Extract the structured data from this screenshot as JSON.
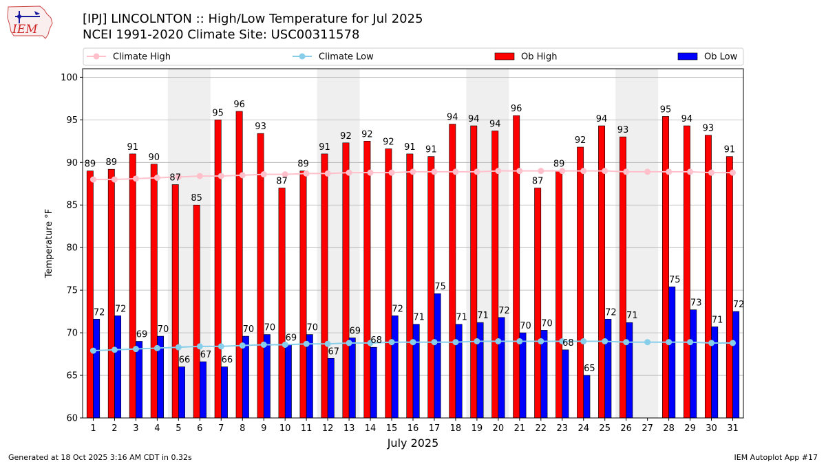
{
  "header": {
    "title_line1": "[IPJ] LINCOLNTON :: High/Low Temperature for Jul 2025",
    "title_line2": "NCEI 1991-2020 Climate Site: USC00311578",
    "logo_text": "IEM"
  },
  "footer": {
    "generated": "Generated at 18 Oct 2025 3:16 AM CDT in 0.32s",
    "app": "IEM Autoplot App #17"
  },
  "colors": {
    "ob_high": "#ff0000",
    "ob_low": "#0000ff",
    "climate_high": "#ffc0cb",
    "climate_low": "#87ceeb",
    "weekend_shade": "#efefef"
  },
  "chart_data": {
    "type": "bar",
    "title": "[IPJ] LINCOLNTON :: High/Low Temperature for Jul 2025",
    "xlabel": "July 2025",
    "ylabel": "Temperature °F",
    "ylim": [
      60,
      101
    ],
    "yticks": [
      60,
      65,
      70,
      75,
      80,
      85,
      90,
      95,
      100
    ],
    "grid": true,
    "legend_position": "top",
    "categories": [
      1,
      2,
      3,
      4,
      5,
      6,
      7,
      8,
      9,
      10,
      11,
      12,
      13,
      14,
      15,
      16,
      17,
      18,
      19,
      20,
      21,
      22,
      23,
      24,
      25,
      26,
      27,
      28,
      29,
      30,
      31
    ],
    "shaded_days": [
      [
        5,
        6
      ],
      [
        12,
        13
      ],
      [
        19,
        20
      ],
      [
        26,
        27
      ]
    ],
    "series": [
      {
        "name": "Ob High",
        "kind": "bar",
        "values": [
          89.0,
          89.2,
          91.0,
          89.8,
          87.4,
          85.0,
          95.0,
          96.0,
          93.4,
          87.0,
          89.0,
          91.0,
          92.3,
          92.5,
          91.6,
          91.0,
          90.7,
          94.5,
          94.3,
          93.7,
          95.5,
          87.0,
          89.0,
          91.8,
          94.3,
          93.0,
          null,
          95.4,
          94.3,
          93.2,
          90.7
        ],
        "labels": [
          "89",
          "89",
          "91",
          "90",
          "87",
          "85",
          "95",
          "96",
          "93",
          "87",
          "89",
          "91",
          "92",
          "92",
          "92",
          "91",
          "91",
          "94",
          "94",
          "94",
          "96",
          "87",
          "89",
          "92",
          "94",
          "93",
          "",
          "95",
          "94",
          "93",
          "91"
        ]
      },
      {
        "name": "Ob Low",
        "kind": "bar",
        "values": [
          71.6,
          72.0,
          69.0,
          69.6,
          66.0,
          66.6,
          66.0,
          69.6,
          69.8,
          68.6,
          69.8,
          67.0,
          69.4,
          68.3,
          72.0,
          71.0,
          74.6,
          71.0,
          71.2,
          71.8,
          70.0,
          70.3,
          68.0,
          65.0,
          71.6,
          71.2,
          null,
          75.4,
          72.7,
          70.7,
          72.5
        ],
        "labels": [
          "72",
          "72",
          "69",
          "70",
          "66",
          "67",
          "66",
          "70",
          "70",
          "69",
          "70",
          "67",
          "69",
          "68",
          "72",
          "71",
          "75",
          "71",
          "71",
          "72",
          "70",
          "70",
          "68",
          "65",
          "72",
          "71",
          "",
          "75",
          "73",
          "71",
          "72"
        ]
      },
      {
        "name": "Climate High",
        "kind": "line",
        "values": [
          88.0,
          88.0,
          88.1,
          88.2,
          88.3,
          88.4,
          88.4,
          88.5,
          88.6,
          88.6,
          88.7,
          88.7,
          88.8,
          88.8,
          88.8,
          88.9,
          88.9,
          88.9,
          88.9,
          89.0,
          89.0,
          89.0,
          89.0,
          89.0,
          89.0,
          88.9,
          88.9,
          88.9,
          88.9,
          88.8,
          88.8
        ]
      },
      {
        "name": "Climate Low",
        "kind": "line",
        "values": [
          67.9,
          68.0,
          68.1,
          68.2,
          68.3,
          68.4,
          68.4,
          68.5,
          68.6,
          68.6,
          68.7,
          68.7,
          68.8,
          68.8,
          68.9,
          68.9,
          68.9,
          68.9,
          69.0,
          69.0,
          69.0,
          69.0,
          69.0,
          69.0,
          69.0,
          68.9,
          68.9,
          68.9,
          68.9,
          68.8,
          68.8
        ]
      }
    ],
    "legend": [
      "Climate High",
      "Climate Low",
      "Ob High",
      "Ob Low"
    ]
  }
}
